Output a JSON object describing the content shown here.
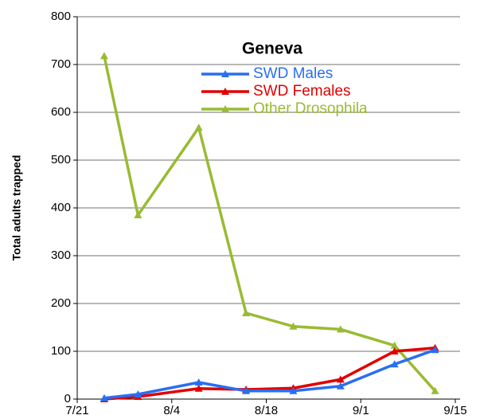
{
  "chart_data": {
    "type": "line",
    "title": "Geneva",
    "y_label": "Total adults trapped",
    "x": [
      "7/25",
      "7/30",
      "8/8",
      "8/15",
      "8/22",
      "8/29",
      "9/6",
      "9/12"
    ],
    "xlim": [
      "7/21",
      "9/15"
    ],
    "xticks": [
      "7/21",
      "8/4",
      "8/18",
      "9/1",
      "9/15"
    ],
    "ylim": [
      0,
      800
    ],
    "yticks": [
      0,
      100,
      200,
      300,
      400,
      500,
      600,
      700,
      800
    ],
    "grid": true,
    "legend": "top",
    "series": [
      {
        "name": "SWD Males",
        "color": "#2a6ef0",
        "values": [
          2,
          10,
          35,
          17,
          17,
          27,
          73,
          103
        ]
      },
      {
        "name": "SWD Females",
        "color": "#e00000",
        "values": [
          0,
          5,
          22,
          20,
          23,
          41,
          100,
          107
        ]
      },
      {
        "name": "Other Drosophila",
        "color": "#99bb33",
        "values": [
          718,
          385,
          568,
          180,
          152,
          146,
          112,
          17
        ]
      }
    ]
  }
}
